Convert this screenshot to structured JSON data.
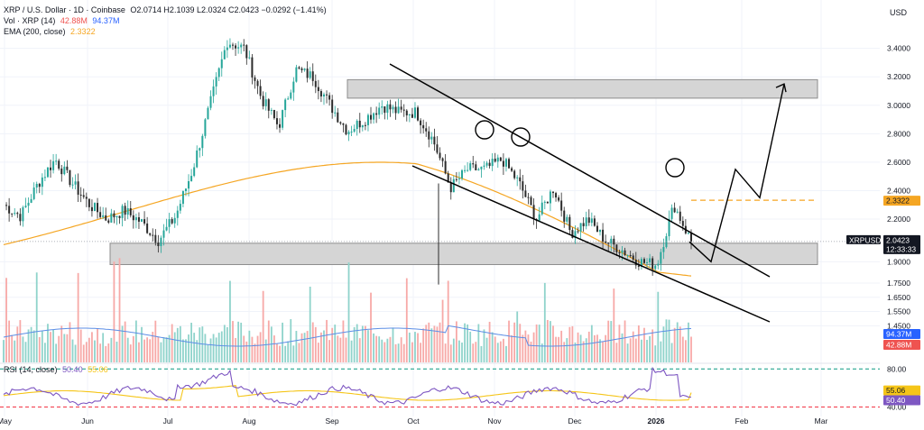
{
  "header": {
    "symbol_line": "XRP / U.S. Dollar · 1D · Coinbase",
    "ohlc": "O2.0714  H2.1039  L2.0324  C2.0423  −0.0292 (−1.41%)",
    "vol_label": "Vol · XRP (14)",
    "vol_value_1": "42.88M",
    "vol_value_2": "94.37M",
    "ema_label": "EMA (200, close)",
    "ema_value": "2.3322",
    "rsi_label": "RSI (14, close)",
    "rsi_value_1": "50.40",
    "rsi_value_2": "55.06",
    "currency": "USD"
  },
  "colors": {
    "up": "#26a69a",
    "down": "#ef5350",
    "ema": "#f5a623",
    "vol_ma": "#2962ff",
    "rsi": "#7e57c2",
    "rsi_ma": "#f5c518",
    "rsi_bands": "#089981",
    "rsi_lower": "#f23645",
    "zone": "#d5d5d5",
    "axis_tag_dark": "#131722"
  },
  "tags": {
    "symbol": "XRPUSD",
    "price": "2.0423",
    "countdown": "12:33:33",
    "ema": "2.3322",
    "vol_ma": "94.37M",
    "vol": "42.88M",
    "rsi_ma": "55.06",
    "rsi": "50.40"
  },
  "chart_data": {
    "type": "candlestick",
    "timeframe": "1D",
    "x_axis_labels": [
      "May",
      "Jun",
      "Jul",
      "Aug",
      "Sep",
      "Oct",
      "Nov",
      "Dec",
      "2026",
      "Feb",
      "Mar"
    ],
    "y_axis_ticks": [
      3.4,
      3.2,
      3.0,
      2.8,
      2.6,
      2.4,
      2.2,
      1.9,
      1.75,
      1.65,
      1.55,
      1.45
    ],
    "y_axis_tick_labels": [
      "3.4000",
      "3.2000",
      "3.0000",
      "2.8000",
      "2.6000",
      "2.4000",
      "2.2000",
      "1.9000",
      "1.7500",
      "1.6500",
      "1.5500",
      "1.4500"
    ],
    "price_range": [
      1.3,
      3.55
    ],
    "anchor_closes": [
      [
        "May",
        2.3
      ],
      [
        "May",
        2.22
      ],
      [
        "May",
        2.45
      ],
      [
        "May",
        2.62
      ],
      [
        "May",
        2.45
      ],
      [
        "May",
        2.3
      ],
      [
        "Jun",
        2.2
      ],
      [
        "Jun",
        2.26
      ],
      [
        "Jun",
        2.18
      ],
      [
        "Jun",
        2.05
      ],
      [
        "Jun",
        2.22
      ],
      [
        "Jul",
        2.55
      ],
      [
        "Jul",
        3.0
      ],
      [
        "Jul",
        3.45
      ],
      [
        "Jul",
        3.4
      ],
      [
        "Aug",
        3.05
      ],
      [
        "Aug",
        2.85
      ],
      [
        "Aug",
        3.25
      ],
      [
        "Aug",
        3.2
      ],
      [
        "Aug",
        3.0
      ],
      [
        "Sep",
        2.82
      ],
      [
        "Sep",
        2.9
      ],
      [
        "Sep",
        3.0
      ],
      [
        "Sep",
        2.95
      ],
      [
        "Oct",
        2.95
      ],
      [
        "Oct",
        2.75
      ],
      [
        "Oct",
        2.42
      ],
      [
        "Oct",
        2.55
      ],
      [
        "Oct",
        2.55
      ],
      [
        "Nov",
        2.62
      ],
      [
        "Nov",
        2.45
      ],
      [
        "Nov",
        2.2
      ],
      [
        "Nov",
        2.42
      ],
      [
        "Nov",
        2.1
      ],
      [
        "Dec",
        2.2
      ],
      [
        "Dec",
        2.05
      ],
      [
        "Dec",
        1.98
      ],
      [
        "Dec",
        1.9
      ],
      [
        "2026",
        1.88
      ],
      [
        "2026",
        2.3
      ],
      [
        "2026",
        2.04
      ]
    ],
    "last_close": 2.0423,
    "ema_200": 2.3322,
    "support_zone": [
      1.88,
      2.03
    ],
    "resistance_zone": [
      3.05,
      3.18
    ],
    "projection_path": [
      2.04,
      1.9,
      2.55,
      2.35,
      3.15
    ],
    "volume_ma": "94.37M",
    "volume_last": "42.88M",
    "rsi": {
      "levels": [
        80,
        40
      ],
      "level_labels": [
        "80.00",
        "40.00"
      ],
      "rsi_value": 50.4,
      "rsi_ma_value": 55.06
    }
  }
}
